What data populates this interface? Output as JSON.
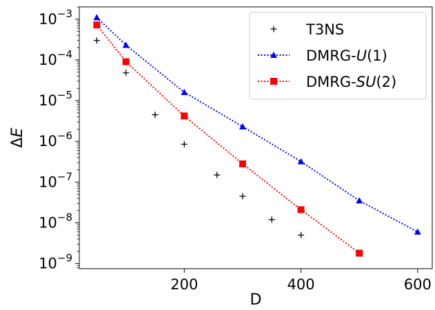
{
  "chart_data": {
    "type": "scatter",
    "xlabel": "D",
    "ylabel": "ΔE",
    "xlim": [
      20,
      625
    ],
    "ylim": [
      7.5e-10,
      0.002
    ],
    "yscale": "log",
    "xticks": [
      200,
      400,
      600
    ],
    "yticks": [
      1e-09,
      1e-08,
      1e-07,
      1e-06,
      1e-05,
      0.0001,
      0.001
    ],
    "ytick_labels": [
      {
        "base": "10",
        "exp": "−9"
      },
      {
        "base": "10",
        "exp": "−8"
      },
      {
        "base": "10",
        "exp": "−7"
      },
      {
        "base": "10",
        "exp": "−6"
      },
      {
        "base": "10",
        "exp": "−5"
      },
      {
        "base": "10",
        "exp": "−4"
      },
      {
        "base": "10",
        "exp": "−3"
      }
    ],
    "grid": false,
    "legend_position": "top-right",
    "series": [
      {
        "name": "T3NS",
        "color": "#000000",
        "marker": "plus",
        "line": "none",
        "x": [
          50,
          100,
          150,
          200,
          256,
          300,
          350,
          400
        ],
        "y": [
          0.0003,
          4.8e-05,
          4.5e-06,
          8.5e-07,
          1.5e-07,
          4.5e-08,
          1.2e-08,
          5e-09
        ]
      },
      {
        "name": "DMRG-U(1)",
        "color": "#0000ff",
        "marker": "triangle",
        "line": "dotted",
        "x": [
          50,
          100,
          200,
          300,
          400,
          500,
          600
        ],
        "y": [
          0.0011,
          0.00023,
          1.6e-05,
          2.3e-06,
          3.2e-07,
          3.5e-08,
          6e-09
        ]
      },
      {
        "name": "DMRG-SU(2)",
        "color": "#ff0000",
        "marker": "square",
        "line": "dotted",
        "x": [
          50,
          100,
          200,
          300,
          400,
          500
        ],
        "y": [
          0.00072,
          9e-05,
          4.2e-06,
          2.8e-07,
          2.1e-08,
          1.8e-09
        ]
      }
    ],
    "legend": [
      {
        "prefix": "T3NS",
        "italic": "",
        "suffix": ""
      },
      {
        "prefix": "DMRG-",
        "italic": "U",
        "suffix": "(1)"
      },
      {
        "prefix": "DMRG-",
        "italic": "SU",
        "suffix": "(2)"
      }
    ]
  }
}
